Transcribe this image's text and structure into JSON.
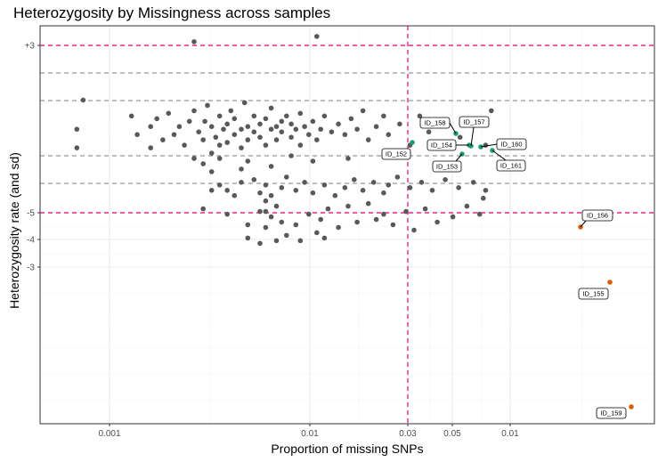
{
  "chart_data": {
    "type": "scatter",
    "title": "Heterozygosity by Missingness across samples",
    "xlabel": "Proportion of missing SNPs",
    "ylabel": "Heterozygosity rate (and sd)",
    "x_tick_labels": [
      "0.001",
      "0.01",
      "0.03",
      "0.05",
      "0.01"
    ],
    "y_tick_labels": [
      "+3",
      "-5",
      "-4",
      "-3"
    ],
    "reference_lines": {
      "outlier_color": "#e7298a",
      "sd_color": "#7f7f7f",
      "missingness_threshold": {
        "x": 0.03
      },
      "heterozygosity_bounds": {
        "upper": "+3",
        "lower": "-5"
      }
    },
    "colors": {
      "pass": "#595959",
      "high_missingness": "#1b9e77",
      "heterozygosity_outlier": "#d95f02"
    },
    "series": [
      {
        "id": "pass",
        "points": [
          [
            0.00065,
            0.254
          ],
          [
            0.00068,
            0.272
          ],
          [
            0.00065,
            0.261
          ],
          [
            0.00096,
            0.266
          ],
          [
            0.001,
            0.259
          ],
          [
            0.0011,
            0.262
          ],
          [
            0.0011,
            0.254
          ],
          [
            0.00115,
            0.265
          ],
          [
            0.0012,
            0.257
          ],
          [
            0.00125,
            0.267
          ],
          [
            0.0013,
            0.259
          ],
          [
            0.00135,
            0.262
          ],
          [
            0.0014,
            0.255
          ],
          [
            0.00145,
            0.264
          ],
          [
            0.0015,
            0.25
          ],
          [
            0.0015,
            0.268
          ],
          [
            0.00155,
            0.26
          ],
          [
            0.0016,
            0.257
          ],
          [
            0.00162,
            0.264
          ],
          [
            0.00165,
            0.27
          ],
          [
            0.0017,
            0.252
          ],
          [
            0.0017,
            0.262
          ],
          [
            0.00175,
            0.258
          ],
          [
            0.0018,
            0.266
          ],
          [
            0.0018,
            0.255
          ],
          [
            0.00185,
            0.261
          ],
          [
            0.0019,
            0.263
          ],
          [
            0.0019,
            0.256
          ],
          [
            0.00195,
            0.268
          ],
          [
            0.002,
            0.259
          ],
          [
            0.002,
            0.265
          ],
          [
            0.0021,
            0.261
          ],
          [
            0.0021,
            0.254
          ],
          [
            0.00215,
            0.271
          ],
          [
            0.0022,
            0.262
          ],
          [
            0.0022,
            0.257
          ],
          [
            0.0023,
            0.266
          ],
          [
            0.0023,
            0.26
          ],
          [
            0.0024,
            0.263
          ],
          [
            0.0024,
            0.258
          ],
          [
            0.0025,
            0.265
          ],
          [
            0.0025,
            0.255
          ],
          [
            0.0026,
            0.261
          ],
          [
            0.0026,
            0.269
          ],
          [
            0.0027,
            0.262
          ],
          [
            0.0027,
            0.257
          ],
          [
            0.0028,
            0.264
          ],
          [
            0.0028,
            0.26
          ],
          [
            0.0029,
            0.266
          ],
          [
            0.003,
            0.258
          ],
          [
            0.003,
            0.263
          ],
          [
            0.0031,
            0.261
          ],
          [
            0.0032,
            0.255
          ],
          [
            0.0032,
            0.267
          ],
          [
            0.0033,
            0.262
          ],
          [
            0.0034,
            0.259
          ],
          [
            0.0035,
            0.264
          ],
          [
            0.0036,
            0.257
          ],
          [
            0.0037,
            0.261
          ],
          [
            0.0038,
            0.266
          ],
          [
            0.004,
            0.26
          ],
          [
            0.0042,
            0.263
          ],
          [
            0.0044,
            0.259
          ],
          [
            0.0046,
            0.265
          ],
          [
            0.0048,
            0.261
          ],
          [
            0.005,
            0.268
          ],
          [
            0.0052,
            0.257
          ],
          [
            0.0055,
            0.262
          ],
          [
            0.0058,
            0.266
          ],
          [
            0.006,
            0.259
          ],
          [
            0.0065,
            0.263
          ],
          [
            0.007,
            0.255
          ],
          [
            0.0075,
            0.266
          ],
          [
            0.008,
            0.26
          ],
          [
            0.009,
            0.263
          ],
          [
            0.01,
            0.258
          ],
          [
            0.011,
            0.264
          ],
          [
            0.012,
            0.255
          ],
          [
            0.0125,
            0.268
          ],
          [
            0.0016,
            0.248
          ],
          [
            0.0018,
            0.25
          ],
          [
            0.0022,
            0.249
          ],
          [
            0.0026,
            0.247
          ],
          [
            0.003,
            0.251
          ],
          [
            0.0035,
            0.249
          ],
          [
            0.0045,
            0.25
          ],
          [
            0.0017,
            0.245
          ],
          [
            0.0021,
            0.246
          ],
          [
            0.0015,
            0.294
          ],
          [
            0.0036,
            0.296
          ],
          [
            0.0016,
            0.231
          ],
          [
            0.0022,
            0.225
          ],
          [
            0.0022,
            0.22
          ],
          [
            0.0024,
            0.218
          ],
          [
            0.0025,
            0.224
          ],
          [
            0.0025,
            0.23
          ],
          [
            0.0026,
            0.228
          ],
          [
            0.0027,
            0.232
          ],
          [
            0.0027,
            0.219
          ],
          [
            0.0028,
            0.226
          ],
          [
            0.0029,
            0.221
          ],
          [
            0.0031,
            0.225
          ],
          [
            0.0032,
            0.219
          ],
          [
            0.0034,
            0.229
          ],
          [
            0.0036,
            0.222
          ],
          [
            0.0037,
            0.227
          ],
          [
            0.0038,
            0.22
          ],
          [
            0.0039,
            0.231
          ],
          [
            0.0042,
            0.224
          ],
          [
            0.0045,
            0.232
          ],
          [
            0.0048,
            0.226
          ],
          [
            0.0052,
            0.233
          ],
          [
            0.0055,
            0.227
          ],
          [
            0.0058,
            0.229
          ],
          [
            0.0062,
            0.225
          ],
          [
            0.0068,
            0.23
          ],
          [
            0.0072,
            0.223
          ],
          [
            0.0078,
            0.231
          ],
          [
            0.0085,
            0.226
          ],
          [
            0.0095,
            0.228
          ],
          [
            0.0105,
            0.232
          ],
          [
            0.0115,
            0.229
          ],
          [
            0.0118,
            0.235
          ],
          [
            0.0019,
            0.229
          ],
          [
            0.0025,
            0.24
          ],
          [
            0.0025,
            0.234
          ],
          [
            0.0024,
            0.237
          ],
          [
            0.0024,
            0.23
          ],
          [
            0.0019,
            0.238
          ],
          [
            0.002,
            0.236
          ],
          [
            0.0021,
            0.241
          ],
          [
            0.0018,
            0.24
          ],
          [
            0.0017,
            0.238
          ],
          [
            0.0023,
            0.242
          ],
          [
            0.0026,
            0.236
          ],
          [
            0.0028,
            0.239
          ],
          [
            0.0029,
            0.243
          ],
          [
            0.0031,
            0.238
          ],
          [
            0.0033,
            0.241
          ],
          [
            0.0035,
            0.237
          ],
          [
            0.0038,
            0.24
          ],
          [
            0.0041,
            0.236
          ],
          [
            0.0044,
            0.239
          ],
          [
            0.0047,
            0.242
          ],
          [
            0.005,
            0.238
          ],
          [
            0.0054,
            0.241
          ],
          [
            0.0058,
            0.237
          ],
          [
            0.006,
            0.24
          ],
          [
            0.0064,
            0.243
          ],
          [
            0.007,
            0.239
          ],
          [
            0.0076,
            0.241
          ],
          [
            0.0082,
            0.238
          ],
          [
            0.009,
            0.242
          ],
          [
            0.0099,
            0.239
          ],
          [
            0.011,
            0.241
          ],
          [
            0.012,
            0.238
          ]
        ]
      }
    ],
    "labeled_samples": [
      {
        "label": "ID_152",
        "group": "high_missingness"
      },
      {
        "label": "ID_153",
        "group": "high_missingness"
      },
      {
        "label": "ID_154",
        "group": "high_missingness"
      },
      {
        "label": "ID_157",
        "group": "high_missingness"
      },
      {
        "label": "ID_158",
        "group": "high_missingness"
      },
      {
        "label": "ID_160",
        "group": "high_missingness"
      },
      {
        "label": "ID_161",
        "group": "high_missingness"
      },
      {
        "label": "ID_156",
        "group": "heterozygosity_outlier"
      },
      {
        "label": "ID_155",
        "group": "heterozygosity_outlier"
      },
      {
        "label": "ID_159",
        "group": "heterozygosity_outlier"
      }
    ]
  }
}
